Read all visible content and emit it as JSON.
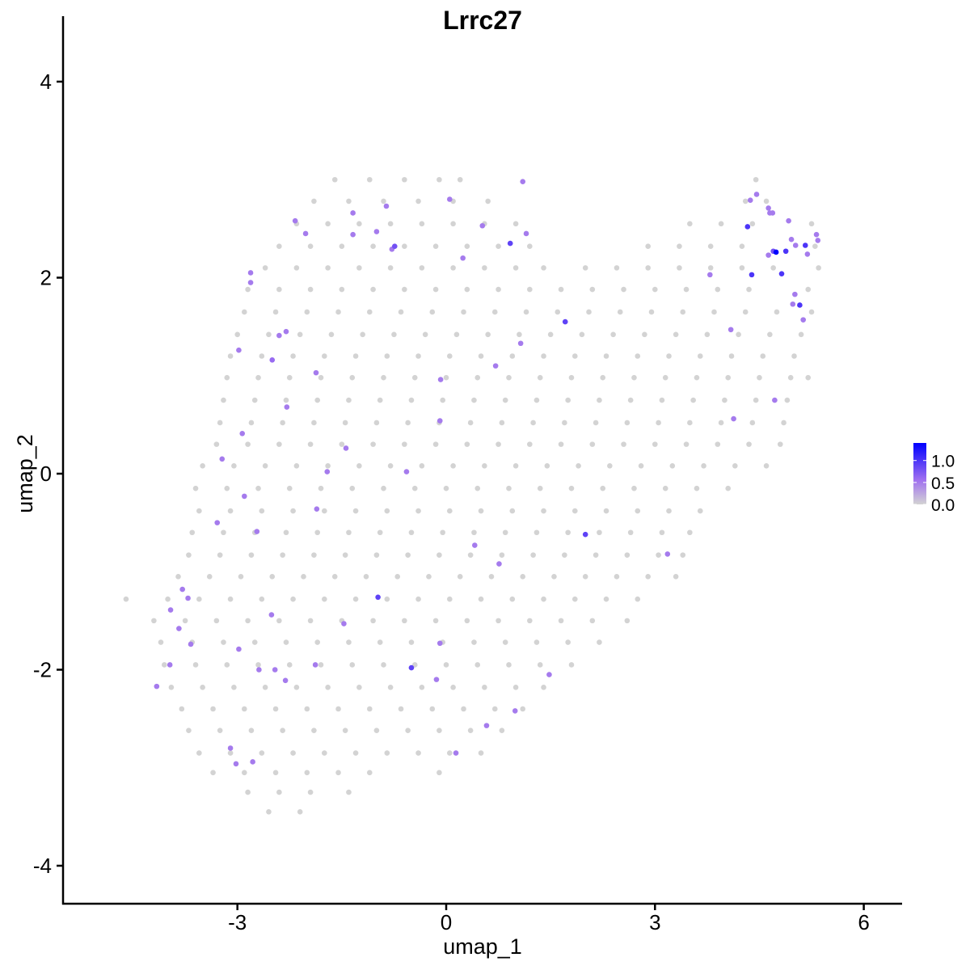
{
  "chart_data": {
    "type": "scatter",
    "title": "Lrrc27",
    "xlabel": "umap_1",
    "ylabel": "umap_2",
    "xlim": [
      -5.5,
      6.55
    ],
    "ylim": [
      -4.4,
      4.65
    ],
    "xticks": [
      "-3",
      "0",
      "3",
      "6"
    ],
    "xtick_values": [
      -3,
      0,
      3,
      6
    ],
    "yticks": [
      "4",
      "2",
      "0",
      "-2",
      "-4"
    ],
    "ytick_values": [
      4,
      2,
      0,
      -2,
      -4
    ],
    "grid": false,
    "legend": {
      "placement": "right",
      "labels": [
        "1.0",
        "0.5",
        "0.0"
      ],
      "label_values": [
        1.0,
        0.5,
        0.0
      ],
      "range": [
        0,
        1.4
      ],
      "low_color": "#d3d3d3",
      "mid_color": "#a070f0",
      "high_color": "#0000ff"
    },
    "zero_expression_points_by_row": [
      {
        "y": 3.0,
        "x": [
          -1.6,
          -1.1,
          -0.6,
          -0.1,
          0.2,
          4.45
        ]
      },
      {
        "y": 2.78,
        "x": [
          -1.9,
          -1.4,
          -0.9,
          -0.4,
          0.1,
          0.6,
          4.3,
          4.6
        ]
      },
      {
        "y": 2.55,
        "x": [
          -2.15,
          -1.7,
          -1.25,
          -0.8,
          -0.35,
          0.1,
          0.55,
          1.0,
          3.5,
          3.95,
          4.4,
          5.25
        ]
      },
      {
        "y": 2.32,
        "x": [
          -2.4,
          -1.95,
          -1.5,
          -1.05,
          -0.6,
          -0.15,
          0.3,
          0.75,
          1.2,
          2.9,
          3.35,
          3.8,
          4.25,
          5.3
        ]
      },
      {
        "y": 2.1,
        "x": [
          -2.6,
          -2.15,
          -1.7,
          -1.25,
          -0.8,
          -0.35,
          0.1,
          0.55,
          1.0,
          1.4,
          2.0,
          2.45,
          2.9,
          3.35,
          3.8,
          4.25,
          4.7,
          5.35
        ]
      },
      {
        "y": 1.88,
        "x": [
          -2.85,
          -2.4,
          -1.95,
          -1.5,
          -1.05,
          -0.6,
          -0.15,
          0.3,
          0.75,
          1.2,
          1.65,
          2.1,
          2.55,
          3.0,
          3.45,
          3.9,
          4.35,
          5.2
        ]
      },
      {
        "y": 1.65,
        "x": [
          -2.9,
          -2.45,
          -2.0,
          -1.55,
          -1.1,
          -0.65,
          -0.2,
          0.25,
          0.7,
          1.15,
          1.6,
          2.05,
          2.5,
          2.95,
          3.4,
          3.85,
          4.3,
          4.75,
          5.25
        ]
      },
      {
        "y": 1.42,
        "x": [
          -3.0,
          -2.55,
          -2.1,
          -1.65,
          -1.2,
          -0.75,
          -0.3,
          0.15,
          0.6,
          1.05,
          1.5,
          1.95,
          2.4,
          2.85,
          3.3,
          3.75,
          4.2,
          4.65,
          5.1
        ]
      },
      {
        "y": 1.2,
        "x": [
          -3.1,
          -2.65,
          -2.2,
          -1.75,
          -1.3,
          -0.85,
          -0.4,
          0.05,
          0.5,
          0.95,
          1.4,
          1.85,
          2.3,
          2.75,
          3.2,
          3.65,
          4.1,
          4.55,
          5.0
        ]
      },
      {
        "y": 0.98,
        "x": [
          -3.15,
          -2.7,
          -2.25,
          -1.8,
          -1.35,
          -0.9,
          -0.45,
          0.0,
          0.45,
          0.9,
          1.35,
          1.8,
          2.25,
          2.7,
          3.15,
          3.6,
          4.05,
          4.5,
          4.95,
          5.2
        ]
      },
      {
        "y": 0.75,
        "x": [
          -3.2,
          -2.75,
          -2.3,
          -1.85,
          -1.4,
          -0.95,
          -0.5,
          -0.05,
          0.4,
          0.85,
          1.3,
          1.75,
          2.2,
          2.65,
          3.1,
          3.55,
          4.0,
          4.45,
          4.9
        ]
      },
      {
        "y": 0.52,
        "x": [
          -3.25,
          -2.8,
          -2.35,
          -1.9,
          -1.45,
          -1.0,
          -0.55,
          -0.1,
          0.35,
          0.8,
          1.25,
          1.7,
          2.15,
          2.6,
          3.05,
          3.5,
          3.95,
          4.4,
          4.85
        ]
      },
      {
        "y": 0.3,
        "x": [
          -3.3,
          -2.85,
          -2.4,
          -1.95,
          -1.5,
          -1.05,
          -0.6,
          -0.15,
          0.3,
          0.75,
          1.2,
          1.65,
          2.1,
          2.55,
          3.0,
          3.45,
          3.9,
          4.35,
          4.8
        ]
      },
      {
        "y": 0.08,
        "x": [
          -3.5,
          -3.05,
          -2.6,
          -2.15,
          -1.7,
          -1.25,
          -0.8,
          -0.35,
          0.1,
          0.55,
          1.0,
          1.45,
          1.9,
          2.35,
          2.8,
          3.25,
          3.7,
          4.15,
          4.6
        ]
      },
      {
        "y": -0.15,
        "x": [
          -3.6,
          -3.15,
          -2.7,
          -2.25,
          -1.8,
          -1.35,
          -0.9,
          -0.45,
          0.0,
          0.45,
          0.9,
          1.35,
          1.8,
          2.25,
          2.7,
          3.15,
          3.6,
          4.05
        ]
      },
      {
        "y": -0.38,
        "x": [
          -3.55,
          -3.1,
          -2.65,
          -2.2,
          -1.75,
          -1.3,
          -0.85,
          -0.4,
          0.05,
          0.5,
          0.95,
          1.4,
          1.85,
          2.3,
          2.75,
          3.2,
          3.65
        ]
      },
      {
        "y": -0.6,
        "x": [
          -3.65,
          -3.2,
          -2.75,
          -2.3,
          -1.85,
          -1.4,
          -0.95,
          -0.5,
          -0.05,
          0.4,
          0.85,
          1.3,
          1.75,
          2.2,
          2.65,
          3.1,
          3.5
        ]
      },
      {
        "y": -0.83,
        "x": [
          -3.7,
          -3.25,
          -2.8,
          -2.35,
          -1.9,
          -1.45,
          -1.0,
          -0.55,
          -0.1,
          0.35,
          0.8,
          1.25,
          1.7,
          2.15,
          2.6,
          3.05,
          3.4
        ]
      },
      {
        "y": -1.05,
        "x": [
          -3.85,
          -3.4,
          -2.95,
          -2.5,
          -2.05,
          -1.6,
          -1.15,
          -0.7,
          -0.25,
          0.2,
          0.65,
          1.1,
          1.55,
          2.0,
          2.45,
          2.9,
          3.3
        ]
      },
      {
        "y": -1.28,
        "x": [
          -4.6,
          -4.0,
          -3.55,
          -3.1,
          -2.65,
          -2.2,
          -1.75,
          -1.3,
          -0.85,
          -0.4,
          0.05,
          0.5,
          0.95,
          1.4,
          1.85,
          2.3,
          2.75
        ]
      },
      {
        "y": -1.5,
        "x": [
          -4.2,
          -3.75,
          -3.3,
          -2.85,
          -2.4,
          -1.95,
          -1.5,
          -1.05,
          -0.6,
          -0.15,
          0.3,
          0.75,
          1.2,
          1.65,
          2.1,
          2.6
        ]
      },
      {
        "y": -1.72,
        "x": [
          -4.1,
          -3.65,
          -3.2,
          -2.75,
          -2.3,
          -1.85,
          -1.4,
          -0.95,
          -0.5,
          -0.05,
          0.4,
          0.85,
          1.3,
          1.75,
          2.2
        ]
      },
      {
        "y": -1.95,
        "x": [
          -4.05,
          -3.6,
          -3.15,
          -2.7,
          -2.25,
          -1.8,
          -1.35,
          -0.9,
          -0.45,
          0.0,
          0.45,
          0.9,
          1.35,
          1.8
        ]
      },
      {
        "y": -2.18,
        "x": [
          -3.95,
          -3.5,
          -3.05,
          -2.6,
          -2.15,
          -1.7,
          -1.25,
          -0.8,
          -0.35,
          0.1,
          0.55,
          1.0,
          1.4
        ]
      },
      {
        "y": -2.4,
        "x": [
          -3.8,
          -3.35,
          -2.9,
          -2.45,
          -2.0,
          -1.55,
          -1.1,
          -0.65,
          -0.2,
          0.25,
          0.7,
          1.1
        ]
      },
      {
        "y": -2.62,
        "x": [
          -3.7,
          -3.25,
          -2.8,
          -2.35,
          -1.9,
          -1.45,
          -1.0,
          -0.55,
          -0.1,
          0.35,
          0.8
        ]
      },
      {
        "y": -2.85,
        "x": [
          -3.55,
          -3.1,
          -2.65,
          -2.2,
          -1.75,
          -1.3,
          -0.85,
          -0.4,
          0.05,
          0.5
        ]
      },
      {
        "y": -3.05,
        "x": [
          -3.35,
          -2.9,
          -2.45,
          -2.0,
          -1.55,
          -1.1,
          -0.1
        ]
      },
      {
        "y": -3.25,
        "x": [
          -2.85,
          -2.4,
          -1.95,
          -1.4
        ]
      },
      {
        "y": -3.45,
        "x": [
          -2.55,
          -2.1
        ]
      }
    ],
    "expressing_points": [
      [
        1.1,
        2.98,
        0.5
      ],
      [
        0.05,
        2.8,
        0.5
      ],
      [
        -1.34,
        2.66,
        0.5
      ],
      [
        -0.86,
        2.73,
        0.5
      ],
      [
        -2.17,
        2.58,
        0.5
      ],
      [
        -2.02,
        2.45,
        0.5
      ],
      [
        -1.34,
        2.44,
        0.5
      ],
      [
        -1.0,
        2.47,
        0.5
      ],
      [
        -0.74,
        2.32,
        0.8
      ],
      [
        -0.78,
        2.29,
        0.5
      ],
      [
        0.52,
        2.53,
        0.5
      ],
      [
        0.92,
        2.35,
        0.9
      ],
      [
        1.15,
        2.45,
        0.5
      ],
      [
        0.24,
        2.2,
        0.5
      ],
      [
        -2.81,
        2.05,
        0.5
      ],
      [
        -2.81,
        1.95,
        0.5
      ],
      [
        1.71,
        1.55,
        0.9
      ],
      [
        -2.3,
        1.45,
        0.5
      ],
      [
        -2.4,
        1.41,
        0.5
      ],
      [
        -2.98,
        1.26,
        0.5
      ],
      [
        1.07,
        1.33,
        0.5
      ],
      [
        -2.5,
        1.16,
        0.6
      ],
      [
        -1.87,
        1.03,
        0.5
      ],
      [
        -0.08,
        0.96,
        0.5
      ],
      [
        0.71,
        1.1,
        0.5
      ],
      [
        -2.29,
        0.68,
        0.5
      ],
      [
        -0.09,
        0.54,
        0.5
      ],
      [
        -2.93,
        0.41,
        0.5
      ],
      [
        -1.44,
        0.26,
        0.5
      ],
      [
        -3.22,
        0.15,
        0.5
      ],
      [
        -1.71,
        0.02,
        0.5
      ],
      [
        -0.57,
        0.02,
        0.5
      ],
      [
        -2.9,
        -0.23,
        0.5
      ],
      [
        -1.86,
        -0.36,
        0.5
      ],
      [
        -3.29,
        -0.5,
        0.5
      ],
      [
        -2.72,
        -0.59,
        0.5
      ],
      [
        2.0,
        -0.62,
        0.9
      ],
      [
        0.41,
        -0.73,
        0.5
      ],
      [
        0.76,
        -0.92,
        0.5
      ],
      [
        3.18,
        -0.82,
        0.5
      ],
      [
        -0.98,
        -1.26,
        0.9
      ],
      [
        -3.79,
        -1.18,
        0.5
      ],
      [
        -3.71,
        -1.27,
        0.5
      ],
      [
        -3.96,
        -1.39,
        0.5
      ],
      [
        -3.84,
        -1.58,
        0.5
      ],
      [
        -2.51,
        -1.44,
        0.5
      ],
      [
        -1.47,
        -1.53,
        0.5
      ],
      [
        -3.67,
        -1.74,
        0.5
      ],
      [
        -0.09,
        -1.73,
        0.5
      ],
      [
        -2.98,
        -1.79,
        0.5
      ],
      [
        -3.97,
        -1.95,
        0.5
      ],
      [
        -1.88,
        -1.95,
        0.5
      ],
      [
        -2.69,
        -2.0,
        0.5
      ],
      [
        -2.46,
        -2.0,
        0.5
      ],
      [
        -0.5,
        -1.98,
        0.9
      ],
      [
        -2.31,
        -2.11,
        0.5
      ],
      [
        -0.14,
        -2.1,
        0.5
      ],
      [
        1.48,
        -2.05,
        0.5
      ],
      [
        -4.16,
        -2.17,
        0.5
      ],
      [
        0.99,
        -2.42,
        0.5
      ],
      [
        0.58,
        -2.57,
        0.5
      ],
      [
        0.14,
        -2.85,
        0.5
      ],
      [
        -3.1,
        -2.8,
        0.5
      ],
      [
        -3.02,
        -2.96,
        0.5
      ],
      [
        -2.78,
        -2.94,
        0.5
      ],
      [
        4.46,
        2.85,
        0.5
      ],
      [
        4.37,
        2.79,
        0.5
      ],
      [
        4.63,
        2.71,
        0.5
      ],
      [
        4.65,
        2.66,
        0.5
      ],
      [
        4.69,
        2.66,
        0.5
      ],
      [
        4.92,
        2.58,
        0.5
      ],
      [
        4.33,
        2.52,
        1.0
      ],
      [
        5.32,
        2.44,
        0.5
      ],
      [
        4.96,
        2.39,
        0.5
      ],
      [
        5.34,
        2.38,
        0.5
      ],
      [
        5.02,
        2.33,
        0.5
      ],
      [
        5.16,
        2.33,
        1.0
      ],
      [
        4.7,
        2.27,
        0.8
      ],
      [
        4.88,
        2.27,
        1.0
      ],
      [
        4.74,
        2.26,
        1.4
      ],
      [
        4.63,
        2.23,
        0.5
      ],
      [
        5.19,
        2.24,
        0.5
      ],
      [
        4.39,
        2.03,
        1.0
      ],
      [
        4.82,
        2.04,
        1.0
      ],
      [
        5.01,
        1.83,
        0.5
      ],
      [
        4.98,
        1.73,
        0.5
      ],
      [
        5.08,
        1.72,
        1.0
      ],
      [
        5.13,
        1.57,
        0.5
      ],
      [
        4.09,
        1.47,
        0.5
      ],
      [
        3.79,
        2.03,
        0.5
      ],
      [
        4.72,
        0.75,
        0.5
      ],
      [
        4.13,
        0.56,
        0.5
      ]
    ]
  }
}
